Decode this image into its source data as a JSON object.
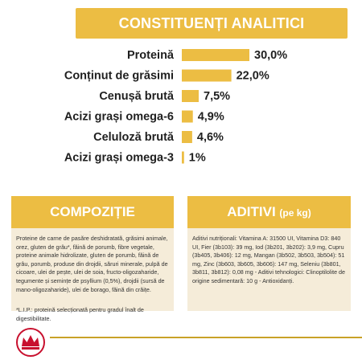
{
  "header": {
    "title": "CONSTITUENȚI ANALITICI"
  },
  "colors": {
    "accent": "#ecbd43",
    "panel": "#f5ecd9",
    "logo_red": "#c8102e"
  },
  "chart_data": {
    "type": "bar",
    "orientation": "horizontal",
    "categories": [
      "Proteină",
      "Conținut de grăsimi",
      "Cenușă brută",
      "Acizi grași omega-6",
      "Celuloză brută",
      "Acizi grași omega-3"
    ],
    "values": [
      30.0,
      22.0,
      7.5,
      4.9,
      4.6,
      1.0
    ],
    "value_labels": [
      "30,0%",
      "22,0%",
      "7,5%",
      "4,9%",
      "4,6%",
      "1%"
    ],
    "unit": "%"
  },
  "composition": {
    "title": "COMPOZIȚIE",
    "text": "Proteine de carne de pasăre deshidratată, grăsimi animale, orez, gluten de grâu*, făină de porumb, fibre vegetale, proteine animale hidrolizate, gluten de porumb, făină de grâu, porumb, produse din drojdii, săruri minerale, pulpă de cicoare, ulei de pește, ulei de soia, fructo-oligozaharide, tegumente și semințe de psyllium (0,5%), drojdii (sursă de mano-oligozaharide), ulei de borago, făină din crăițe.",
    "footnote": "*L.I.P.: proteină selecționată pentru gradul înalt de digestibilitate."
  },
  "additives": {
    "title": "ADITIVI",
    "title_suffix": "(pe kg)",
    "text": "Aditivi nutriționali: Vitamina A: 31500 UI, Vitamina D3: 840 UI, Fier (3b103): 39 mg, Iod (3b201, 3b202): 3,9 mg, Cupru (3b405, 3b406): 12 mg, Mangan (3b502, 3b503, 3b504): 51 mg, Zinc (3b603, 3b605, 3b606): 147 mg, Seleniu (3b801, 3b811, 3b812): 0,08 mg - Aditivi tehnologici: Clinoptilolite de origine sedimentară: 10 g - Antioxidanți."
  }
}
